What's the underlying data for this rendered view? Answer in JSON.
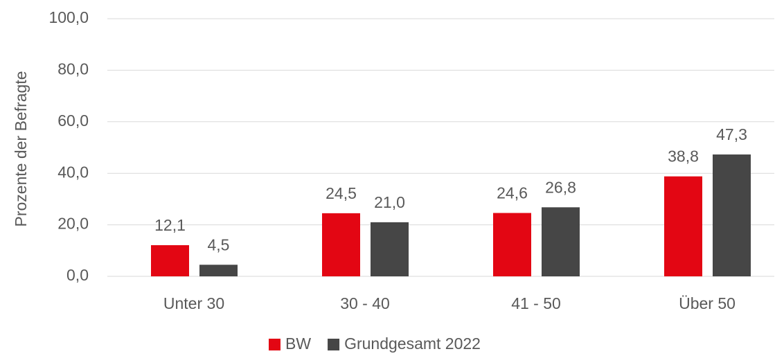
{
  "chart_data": {
    "type": "bar",
    "ylabel": "Prozente der Befragte",
    "categories": [
      "Unter 30",
      "30 - 40",
      "41 - 50",
      "Über 50"
    ],
    "series": [
      {
        "name": "BW",
        "color": "#e30613",
        "values": [
          12.1,
          24.5,
          24.6,
          38.8
        ],
        "value_labels": [
          "12,1",
          "24,5",
          "24,6",
          "38,8"
        ]
      },
      {
        "name": "Grundgesamt 2022",
        "color": "#464646",
        "values": [
          4.5,
          21.0,
          26.8,
          47.3
        ],
        "value_labels": [
          "4,5",
          "21,0",
          "26,8",
          "47,3"
        ]
      }
    ],
    "ylim": [
      0,
      100
    ],
    "yticks": [
      {
        "value": 0,
        "label": "0,0"
      },
      {
        "value": 20,
        "label": "20,0"
      },
      {
        "value": 40,
        "label": "40,0"
      },
      {
        "value": 60,
        "label": "60,0"
      },
      {
        "value": 80,
        "label": "80,0"
      },
      {
        "value": 100,
        "label": "100,0"
      }
    ],
    "grid": true,
    "legend": "bottom"
  }
}
